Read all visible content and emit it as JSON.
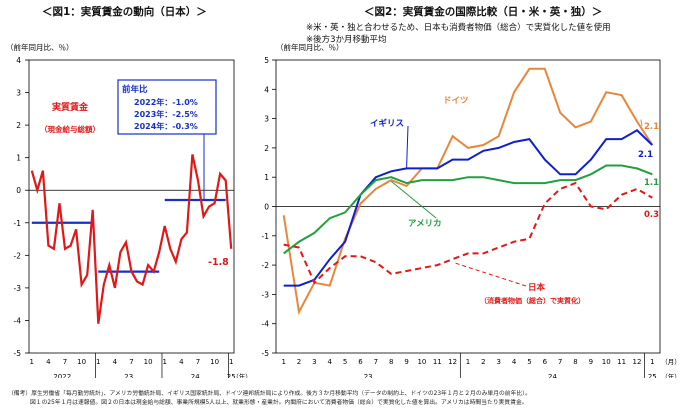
{
  "fig1": {
    "title": "＜図1：実質賃金の動向（日本）＞",
    "unit": "（前年同月比、％）",
    "series_label": "実質賃金",
    "series_sublabel": "（現金給与総額）",
    "last_value": "-1.8",
    "box_title": "前年比",
    "box_lines": [
      "2022年：-1.0%",
      "2023年：-2.5%",
      "2024年：-0.3%"
    ],
    "x_tick_labels": [
      "1",
      "4",
      "7",
      "10",
      "1",
      "4",
      "7",
      "10",
      "1",
      "4",
      "7",
      "10",
      "1"
    ],
    "year_labels": [
      "2022",
      "23",
      "24",
      "25"
    ],
    "year_axis_note": "（年）",
    "colors": {
      "series": "#e01818",
      "avg": "#1630c8",
      "box": "#1630c8"
    }
  },
  "fig2": {
    "title": "＜図2：実質賃金の国際比較（日・米・英・独）＞",
    "note1": "※米・英・独と合わせるため、日本も消費者物価（総合）で実質化した値を使用",
    "note2": "※後方3か月移動平均",
    "unit": "（前年同月比、％）",
    "labels": {
      "germany": "ドイツ",
      "uk": "イギリス",
      "us": "アメリカ",
      "japan": "日本",
      "japan_sub": "（消費者物価（総合）で実質化）"
    },
    "end_values": {
      "germany": "2.1",
      "uk": "2.1",
      "us": "1.1",
      "japan": "0.3"
    },
    "x_tick_labels": [
      "1",
      "2",
      "3",
      "4",
      "5",
      "6",
      "7",
      "8",
      "9",
      "10",
      "11",
      "12",
      "1",
      "2",
      "3",
      "4",
      "5",
      "6",
      "7",
      "8",
      "9",
      "10",
      "11",
      "12",
      "1"
    ],
    "month_axis_note": "（月）",
    "year_labels": [
      "23",
      "24",
      "25"
    ],
    "year_axis_note": "（年）",
    "colors": {
      "germany": "#e8863c",
      "uk": "#1020c8",
      "us": "#20a040",
      "japan": "#e01818"
    }
  },
  "footnotes": [
    "（備考）厚生労働省「毎月勤労統計」、アメリカ労働統計局、イギリス国家統計局、ドイツ連邦統計局により作成。後方３か月移動平均（データの制約上、ドイツの23年１月と２月のみ単月の前年比）。",
    "図１の25年１月は速報値。図２の日本は現金給与総額、事業所規模5人以上、就業形態・産業計。内閣府において消費者物価（総合）で実質化した値を算出。アメリカは時間当たり実質賃金。"
  ],
  "chart_data": [
    {
      "type": "line",
      "title": "＜図1：実質賃金の動向（日本）＞",
      "ylabel": "（前年同月比、％）",
      "ylim": [
        -5,
        4
      ],
      "x": [
        "2022-01",
        "2022-02",
        "2022-03",
        "2022-04",
        "2022-05",
        "2022-06",
        "2022-07",
        "2022-08",
        "2022-09",
        "2022-10",
        "2022-11",
        "2022-12",
        "2023-01",
        "2023-02",
        "2023-03",
        "2023-04",
        "2023-05",
        "2023-06",
        "2023-07",
        "2023-08",
        "2023-09",
        "2023-10",
        "2023-11",
        "2023-12",
        "2024-01",
        "2024-02",
        "2024-03",
        "2024-04",
        "2024-05",
        "2024-06",
        "2024-07",
        "2024-08",
        "2024-09",
        "2024-10",
        "2024-11",
        "2024-12",
        "2025-01"
      ],
      "series": [
        {
          "name": "実質賃金",
          "values": [
            0.6,
            0.0,
            0.6,
            -1.7,
            -1.8,
            -0.4,
            -1.8,
            -1.7,
            -1.2,
            -2.9,
            -2.6,
            -0.6,
            -4.1,
            -2.9,
            -2.3,
            -3.0,
            -1.9,
            -1.6,
            -2.5,
            -2.8,
            -2.9,
            -2.3,
            -2.5,
            -1.9,
            -1.1,
            -1.8,
            -2.2,
            -1.5,
            -1.3,
            1.1,
            0.3,
            -0.8,
            -0.5,
            -0.4,
            0.5,
            0.3,
            -1.8
          ]
        }
      ],
      "annual_averages": {
        "2022": -1.0,
        "2023": -2.5,
        "2024": -0.3
      }
    },
    {
      "type": "line",
      "title": "＜図2：実質賃金の国際比較（日・米・英・独）＞",
      "ylabel": "（前年同月比、％）",
      "ylim": [
        -5,
        5
      ],
      "x": [
        "2023-01",
        "2023-02",
        "2023-03",
        "2023-04",
        "2023-05",
        "2023-06",
        "2023-07",
        "2023-08",
        "2023-09",
        "2023-10",
        "2023-11",
        "2023-12",
        "2024-01",
        "2024-02",
        "2024-03",
        "2024-04",
        "2024-05",
        "2024-06",
        "2024-07",
        "2024-08",
        "2024-09",
        "2024-10",
        "2024-11",
        "2024-12",
        "2025-01"
      ],
      "series": [
        {
          "name": "ドイツ",
          "values": [
            -0.3,
            -3.6,
            -2.6,
            -2.7,
            -1.1,
            0.1,
            0.6,
            0.9,
            0.7,
            1.3,
            1.3,
            2.4,
            2.0,
            2.1,
            2.4,
            3.9,
            4.7,
            4.7,
            3.2,
            2.7,
            2.9,
            3.9,
            3.8,
            2.9,
            2.1
          ]
        },
        {
          "name": "イギリス",
          "values": [
            -2.7,
            -2.7,
            -2.5,
            -1.8,
            -1.2,
            0.4,
            1.0,
            1.2,
            1.3,
            1.3,
            1.3,
            1.6,
            1.6,
            1.9,
            2.0,
            2.2,
            2.3,
            1.6,
            1.1,
            1.1,
            1.6,
            2.3,
            2.3,
            2.6,
            2.1
          ]
        },
        {
          "name": "アメリカ",
          "values": [
            -1.6,
            -1.2,
            -0.9,
            -0.4,
            -0.2,
            0.4,
            0.9,
            1.0,
            0.8,
            0.9,
            0.9,
            0.9,
            1.0,
            1.0,
            0.9,
            0.8,
            0.8,
            0.8,
            0.9,
            0.9,
            1.1,
            1.4,
            1.4,
            1.3,
            1.1
          ]
        },
        {
          "name": "日本",
          "values": [
            -1.3,
            -1.4,
            -2.6,
            -2.1,
            -1.7,
            -1.7,
            -1.9,
            -2.3,
            -2.2,
            -2.1,
            -2.0,
            -1.8,
            -1.6,
            -1.6,
            -1.4,
            -1.2,
            -1.1,
            0.1,
            0.6,
            0.8,
            0.0,
            -0.1,
            0.4,
            0.6,
            0.3
          ]
        }
      ]
    }
  ]
}
